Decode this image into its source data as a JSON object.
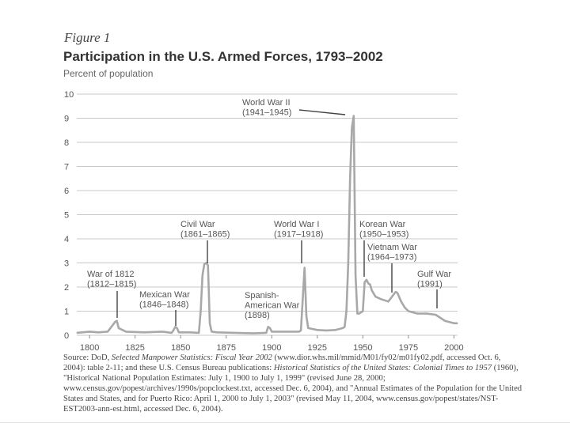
{
  "figure_label": "Figure 1",
  "chart_data": {
    "type": "line",
    "title": "Participation in the U.S. Armed Forces, 1793–2002",
    "ylabel": "Percent of population",
    "xlabel": "",
    "xlim": [
      1793,
      2002
    ],
    "ylim": [
      0,
      10
    ],
    "y_ticks": [
      "0",
      "1",
      "2",
      "3",
      "4",
      "5",
      "6",
      "7",
      "8",
      "9",
      "10"
    ],
    "x_ticks": [
      "1800",
      "1825",
      "1850",
      "1875",
      "1900",
      "1925",
      "1950",
      "1975",
      "2000"
    ],
    "grid": true,
    "series": [
      {
        "name": "Percent of population in armed forces",
        "x": [
          1793,
          1800,
          1805,
          1810,
          1812,
          1814,
          1815,
          1816,
          1820,
          1830,
          1840,
          1845,
          1846,
          1847,
          1848,
          1849,
          1855,
          1860,
          1861,
          1862,
          1863,
          1864,
          1865,
          1866,
          1867,
          1870,
          1880,
          1890,
          1897,
          1898,
          1899,
          1900,
          1905,
          1910,
          1915,
          1916,
          1917,
          1918,
          1919,
          1920,
          1925,
          1930,
          1935,
          1939,
          1940,
          1941,
          1942,
          1943,
          1944,
          1945,
          1946,
          1947,
          1948,
          1950,
          1951,
          1952,
          1953,
          1954,
          1955,
          1957,
          1960,
          1964,
          1965,
          1967,
          1968,
          1969,
          1971,
          1973,
          1975,
          1980,
          1985,
          1990,
          1991,
          1993,
          1995,
          2000,
          2002
        ],
        "values": [
          0.1,
          0.15,
          0.12,
          0.15,
          0.35,
          0.55,
          0.6,
          0.3,
          0.15,
          0.12,
          0.15,
          0.1,
          0.2,
          0.35,
          0.3,
          0.12,
          0.12,
          0.1,
          1.0,
          2.5,
          2.95,
          3.0,
          2.9,
          0.5,
          0.15,
          0.12,
          0.1,
          0.08,
          0.1,
          0.35,
          0.3,
          0.15,
          0.15,
          0.15,
          0.15,
          0.2,
          1.5,
          2.8,
          0.8,
          0.3,
          0.22,
          0.2,
          0.22,
          0.3,
          0.35,
          1.0,
          3.0,
          6.5,
          8.6,
          9.1,
          2.5,
          0.9,
          0.9,
          1.0,
          2.2,
          2.3,
          2.15,
          2.1,
          1.85,
          1.6,
          1.5,
          1.4,
          1.5,
          1.7,
          1.8,
          1.75,
          1.4,
          1.15,
          1.0,
          0.9,
          0.9,
          0.85,
          0.8,
          0.7,
          0.6,
          0.5,
          0.5
        ]
      }
    ],
    "annotations": [
      {
        "name": "war-1812",
        "lines": [
          "War of 1812",
          "(1812–1815)"
        ],
        "year": 1814,
        "value": 0.55
      },
      {
        "name": "mexican-war",
        "lines": [
          "Mexican War",
          "(1846–1848)"
        ],
        "year": 1847,
        "value": 0.35
      },
      {
        "name": "civil-war",
        "lines": [
          "Civil War",
          "(1861–1865)"
        ],
        "year": 1864,
        "value": 3.0
      },
      {
        "name": "spanish-american-war",
        "lines": [
          "Spanish-",
          "American War",
          "(1898)"
        ],
        "year": 1898,
        "value": 0.35
      },
      {
        "name": "world-war-i",
        "lines": [
          "World War I",
          "(1917–1918)"
        ],
        "year": 1918,
        "value": 2.8
      },
      {
        "name": "world-war-ii",
        "lines": [
          "World War II",
          "(1941–1945)"
        ],
        "year": 1945,
        "value": 9.1
      },
      {
        "name": "korean-war",
        "lines": [
          "Korean War",
          "(1950–1953)"
        ],
        "year": 1952,
        "value": 2.3
      },
      {
        "name": "vietnam-war",
        "lines": [
          "Vietnam War",
          "(1964–1973)"
        ],
        "year": 1968,
        "value": 1.8
      },
      {
        "name": "gulf-war",
        "lines": [
          "Gulf War",
          "(1991)"
        ],
        "year": 1991,
        "value": 0.8
      }
    ]
  },
  "source": {
    "prefix": "Source: DoD, ",
    "title1": "Selected Manpower Statistics: Fiscal Year 2002",
    "part2": " (www.dior.whs.mil/mmid/M01/fy02/m01fy02.pdf, accessed Oct. 6, 2004): table 2-11; and these U.S. Census Bureau publications: ",
    "title2": "Historical Statistics of the United States: Colonial Times to 1957",
    "part3": " (1960), \"Historical National Population Estimates: July 1, 1900 to July 1, 1999\" (revised June 28, 2000; www.census.gov/popest/archives/1990s/popclockest.txt, accessed Dec. 6, 2004), and \"Annual Estimates of the Population for the United States and States, and for Puerto Rico: April 1, 2000 to July 1, 2003\" (revised May 11, 2004, www.census.gov/popest/states/NST-EST2003-ann-est.html, accessed Dec. 6, 2004)."
  }
}
